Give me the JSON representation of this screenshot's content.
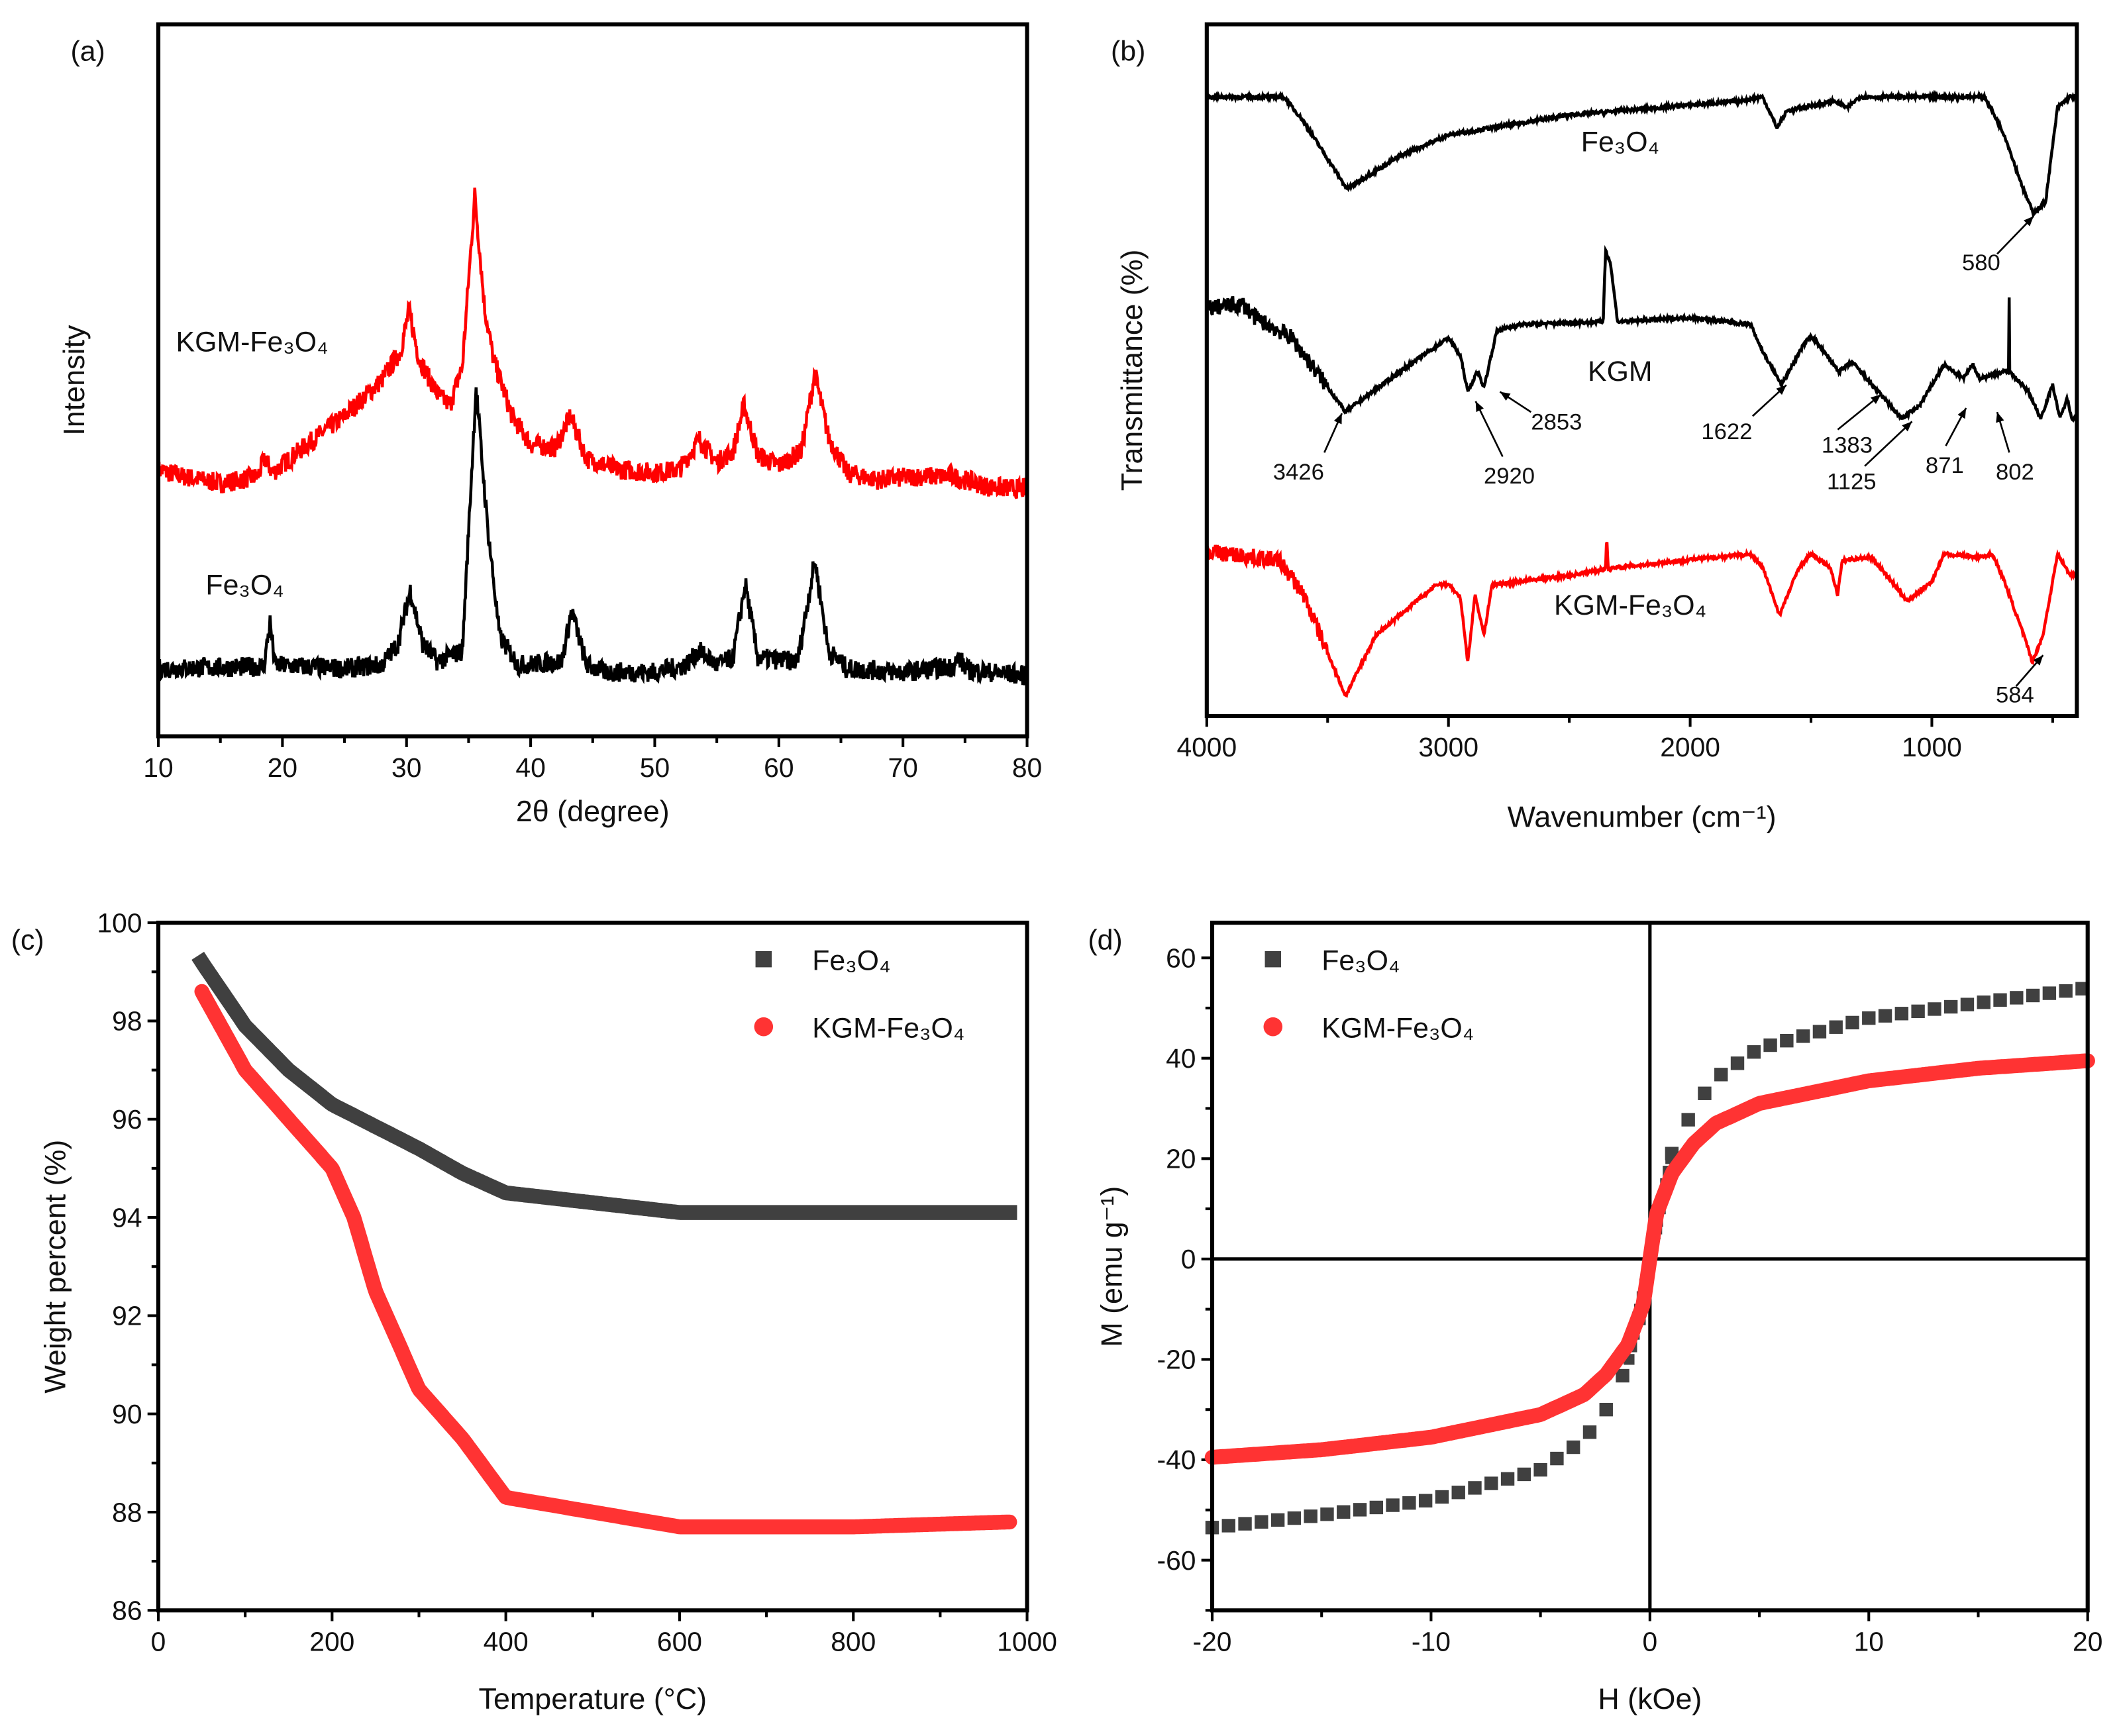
{
  "chart_data": [
    {
      "panel": "(a)",
      "type": "line",
      "xlabel": "2θ (degree)",
      "ylabel": "Intensity",
      "xlim": [
        10,
        80
      ],
      "ylim": [
        0,
        100
      ],
      "xticks": [
        "10",
        "20",
        "30",
        "40",
        "50",
        "60",
        "70",
        "80"
      ],
      "xtick_values": [
        10,
        20,
        30,
        40,
        50,
        60,
        70,
        80
      ],
      "series": [
        {
          "name": "KGM-Fe₃O₄",
          "color": "#ff0000",
          "points": [
            [
              10,
              37.4
            ],
            [
              12,
              36.5
            ],
            [
              15,
              35.5
            ],
            [
              18,
              36.5
            ],
            [
              18.6,
              39
            ],
            [
              19.2,
              37
            ],
            [
              22,
              41
            ],
            [
              25,
              45
            ],
            [
              28,
              50
            ],
            [
              29.5,
              54
            ],
            [
              30.2,
              59.8
            ],
            [
              31,
              53
            ],
            [
              32.5,
              48
            ],
            [
              33.5,
              46.5
            ],
            [
              34.5,
              52
            ],
            [
              35.5,
              76
            ],
            [
              36.3,
              60
            ],
            [
              37,
              53
            ],
            [
              38.5,
              45
            ],
            [
              40,
              41
            ],
            [
              42,
              40.5
            ],
            [
              43.2,
              45
            ],
            [
              44.5,
              39
            ],
            [
              47,
              37.5
            ],
            [
              50,
              37
            ],
            [
              52,
              37.5
            ],
            [
              53.6,
              41.7
            ],
            [
              55,
              38.5
            ],
            [
              56.3,
              40
            ],
            [
              57.2,
              46.5
            ],
            [
              58.3,
              39.5
            ],
            [
              60,
              38
            ],
            [
              61.8,
              40
            ],
            [
              62.9,
              51
            ],
            [
              64,
              42
            ],
            [
              65.5,
              37
            ],
            [
              68,
              36
            ],
            [
              71,
              36.5
            ],
            [
              74,
              36.5
            ],
            [
              77,
              35
            ],
            [
              80,
              34.7
            ]
          ]
        },
        {
          "name": "Fe₃O₄",
          "color": "#000000",
          "points": [
            [
              10,
              9.5
            ],
            [
              18.5,
              9.8
            ],
            [
              19,
              16
            ],
            [
              19.4,
              10
            ],
            [
              25,
              9.5
            ],
            [
              28,
              10
            ],
            [
              29.3,
              13
            ],
            [
              30.3,
              20.5
            ],
            [
              31.3,
              13
            ],
            [
              32.5,
              10.5
            ],
            [
              34.5,
              12
            ],
            [
              35.6,
              49
            ],
            [
              36.5,
              30
            ],
            [
              37.5,
              14
            ],
            [
              39,
              10
            ],
            [
              42.5,
              10.5
            ],
            [
              43.3,
              17.6
            ],
            [
              44.5,
              10
            ],
            [
              46,
              9
            ],
            [
              50,
              9
            ],
            [
              52.5,
              10
            ],
            [
              53.6,
              12
            ],
            [
              55,
              10
            ],
            [
              56.3,
              11
            ],
            [
              57.3,
              21.4
            ],
            [
              58.3,
              11
            ],
            [
              61.5,
              10.5
            ],
            [
              62.9,
              24.7
            ],
            [
              64,
              12
            ],
            [
              65.5,
              9.5
            ],
            [
              70,
              9
            ],
            [
              74,
              9.8
            ],
            [
              74.5,
              11
            ],
            [
              75.2,
              9.3
            ],
            [
              80,
              8.5
            ]
          ]
        }
      ],
      "annotations": [
        "KGM-Fe₃O₄",
        "Fe₃O₄"
      ]
    },
    {
      "panel": "(b)",
      "type": "line",
      "xlabel": "Wavenumber (cm⁻¹)",
      "ylabel": "Transmittance (%)",
      "xlim": [
        4000,
        400
      ],
      "ylim": [
        0,
        100
      ],
      "xticks": [
        "4000",
        "3000",
        "2000",
        "1000"
      ],
      "xtick_values": [
        4000,
        3000,
        2000,
        1000
      ],
      "series": [
        {
          "name": "Fe₃O₄",
          "color": "#000000",
          "points": [
            [
              4000,
              89.5
            ],
            [
              3680,
              89.5
            ],
            [
              3600,
              86
            ],
            [
              3420,
              76.2
            ],
            [
              3200,
              81
            ],
            [
              3000,
              84
            ],
            [
              2500,
              86.9
            ],
            [
              1800,
              88.9
            ],
            [
              1700,
              89.5
            ],
            [
              1640,
              85
            ],
            [
              1600,
              87.5
            ],
            [
              1400,
              88.9
            ],
            [
              1350,
              87.9
            ],
            [
              1300,
              89.5
            ],
            [
              780,
              89.5
            ],
            [
              700,
              84
            ],
            [
              620,
              76
            ],
            [
              580,
              72.7
            ],
            [
              530,
              74.2
            ],
            [
              480,
              88
            ],
            [
              430,
              89.5
            ]
          ]
        },
        {
          "name": "KGM",
          "color": "#000000",
          "points": [
            [
              4000,
              59
            ],
            [
              3850,
              59.5
            ],
            [
              3800,
              57.6
            ],
            [
              3650,
              54.7
            ],
            [
              3426,
              44
            ],
            [
              3200,
              49.8
            ],
            [
              3000,
              54.7
            ],
            [
              2950,
              52
            ],
            [
              2920,
              46.9
            ],
            [
              2880,
              49.8
            ],
            [
              2853,
              47.5
            ],
            [
              2800,
              55.7
            ],
            [
              2700,
              56.6
            ],
            [
              2360,
              57
            ],
            [
              2350,
              67.4
            ],
            [
              2330,
              65.5
            ],
            [
              2300,
              57
            ],
            [
              2000,
              57.6
            ],
            [
              1750,
              56.6
            ],
            [
              1700,
              52.7
            ],
            [
              1622,
              47.9
            ],
            [
              1530,
              53.7
            ],
            [
              1500,
              55
            ],
            [
              1383,
              49.8
            ],
            [
              1330,
              51.2
            ],
            [
              1125,
              43
            ],
            [
              1050,
              44.9
            ],
            [
              950,
              50.8
            ],
            [
              871,
              48.8
            ],
            [
              830,
              50.8
            ],
            [
              802,
              48.8
            ],
            [
              700,
              49.8
            ],
            [
              682,
              49.8
            ],
            [
              680,
              62.5
            ],
            [
              678,
              49.8
            ],
            [
              600,
              46.9
            ],
            [
              550,
              43
            ],
            [
              500,
              47.9
            ],
            [
              470,
              43
            ],
            [
              440,
              45.9
            ],
            [
              420,
              43
            ]
          ]
        },
        {
          "name": "KGM-Fe₃O₄",
          "color": "#ff0000",
          "points": [
            [
              4000,
              23.8
            ],
            [
              3700,
              22.5
            ],
            [
              3600,
              17.6
            ],
            [
              3426,
              2.9
            ],
            [
              3300,
              11.7
            ],
            [
              3050,
              19
            ],
            [
              3000,
              19.1
            ],
            [
              2950,
              17
            ],
            [
              2920,
              7.8
            ],
            [
              2890,
              17.6
            ],
            [
              2853,
              11.7
            ],
            [
              2820,
              19
            ],
            [
              2500,
              20.3
            ],
            [
              2350,
              21.3
            ],
            [
              2345,
              26.4
            ],
            [
              2340,
              21.3
            ],
            [
              2000,
              22.6
            ],
            [
              1750,
              23.4
            ],
            [
              1700,
              21.5
            ],
            [
              1630,
              14.6
            ],
            [
              1550,
              21.5
            ],
            [
              1500,
              23.4
            ],
            [
              1420,
              21.5
            ],
            [
              1390,
              17.6
            ],
            [
              1370,
              22.5
            ],
            [
              1250,
              23
            ],
            [
              1100,
              16.6
            ],
            [
              1000,
              19.5
            ],
            [
              950,
              23.4
            ],
            [
              800,
              23
            ],
            [
              750,
              23.4
            ],
            [
              700,
              19.5
            ],
            [
              620,
              11.7
            ],
            [
              584,
              7.8
            ],
            [
              540,
              11.7
            ],
            [
              480,
              23.4
            ],
            [
              430,
              20.5
            ]
          ]
        }
      ],
      "annotations": [
        "Fe₃O₄",
        "KGM",
        "KGM-Fe₃O₄",
        "580",
        "3426",
        "2920",
        "2853",
        "1622",
        "1383",
        "1125",
        "871",
        "802",
        "584"
      ]
    },
    {
      "panel": "(c)",
      "type": "scatter",
      "xlabel": "Temperature (°C)",
      "ylabel": "Weight percent (%)",
      "xlim": [
        0,
        1000
      ],
      "ylim": [
        86,
        100
      ],
      "xticks": [
        "0",
        "200",
        "400",
        "600",
        "800",
        "1000"
      ],
      "xtick_values": [
        0,
        200,
        400,
        600,
        800,
        1000
      ],
      "yticks": [
        "86",
        "88",
        "90",
        "92",
        "94",
        "96",
        "98",
        "100"
      ],
      "ytick_values": [
        86,
        88,
        90,
        92,
        94,
        96,
        98,
        100
      ],
      "legend_position": "top-right",
      "series": [
        {
          "name": "Fe₃O₄",
          "color": "#404040",
          "marker": "square",
          "points": [
            [
              50,
              99.2
            ],
            [
              100,
              97.9
            ],
            [
              150,
              97.0
            ],
            [
              200,
              96.3
            ],
            [
              300,
              95.4
            ],
            [
              350,
              94.9
            ],
            [
              400,
              94.5
            ],
            [
              500,
              94.3
            ],
            [
              600,
              94.1
            ],
            [
              800,
              94.1
            ],
            [
              980,
              94.1
            ]
          ]
        },
        {
          "name": "KGM-Fe₃O₄",
          "color": "#ff3333",
          "marker": "circle",
          "points": [
            [
              50,
              98.6
            ],
            [
              100,
              97.0
            ],
            [
              150,
              96.0
            ],
            [
              200,
              95.0
            ],
            [
              225,
              94.0
            ],
            [
              250,
              92.5
            ],
            [
              300,
              90.5
            ],
            [
              350,
              89.5
            ],
            [
              400,
              88.3
            ],
            [
              500,
              88.0
            ],
            [
              600,
              87.7
            ],
            [
              800,
              87.7
            ],
            [
              980,
              87.8
            ]
          ]
        }
      ]
    },
    {
      "panel": "(d)",
      "type": "scatter",
      "xlabel": "H (kOe)",
      "ylabel": "M (emu g⁻¹)",
      "xlim": [
        -20,
        20
      ],
      "ylim": [
        -70,
        67
      ],
      "xticks": [
        "-20",
        "-10",
        "0",
        "10",
        "20"
      ],
      "xtick_values": [
        -20,
        -10,
        0,
        10,
        20
      ],
      "yticks": [
        "-60",
        "-40",
        "-20",
        "0",
        "20",
        "40",
        "60"
      ],
      "ytick_values": [
        -60,
        -40,
        -20,
        0,
        20,
        40,
        60
      ],
      "legend_position": "top-left",
      "series": [
        {
          "name": "Fe₃O₄",
          "color": "#404040",
          "marker": "square",
          "points": [
            [
              -20,
              -53.5
            ],
            [
              -15,
              -51
            ],
            [
              -10,
              -48
            ],
            [
              -5,
              -42
            ],
            [
              -3,
              -36
            ],
            [
              -2,
              -30
            ],
            [
              -1,
              -21
            ],
            [
              -0.4,
              -10
            ],
            [
              0,
              0
            ],
            [
              0.4,
              10
            ],
            [
              1,
              21
            ],
            [
              2,
              30
            ],
            [
              3,
              36
            ],
            [
              5,
              42
            ],
            [
              10,
              48
            ],
            [
              15,
              51
            ],
            [
              20,
              54
            ]
          ]
        },
        {
          "name": "KGM-Fe₃O₄",
          "color": "#ff3333",
          "marker": "circle",
          "points": [
            [
              -20,
              -39.5
            ],
            [
              -15,
              -38
            ],
            [
              -10,
              -35.5
            ],
            [
              -5,
              -31
            ],
            [
              -3,
              -27
            ],
            [
              -2,
              -23
            ],
            [
              -1,
              -17
            ],
            [
              -0.3,
              -9
            ],
            [
              0,
              0
            ],
            [
              0.3,
              9
            ],
            [
              1,
              17
            ],
            [
              2,
              23
            ],
            [
              3,
              27
            ],
            [
              5,
              31
            ],
            [
              10,
              35.5
            ],
            [
              15,
              38
            ],
            [
              20,
              39.5
            ]
          ]
        }
      ]
    }
  ]
}
